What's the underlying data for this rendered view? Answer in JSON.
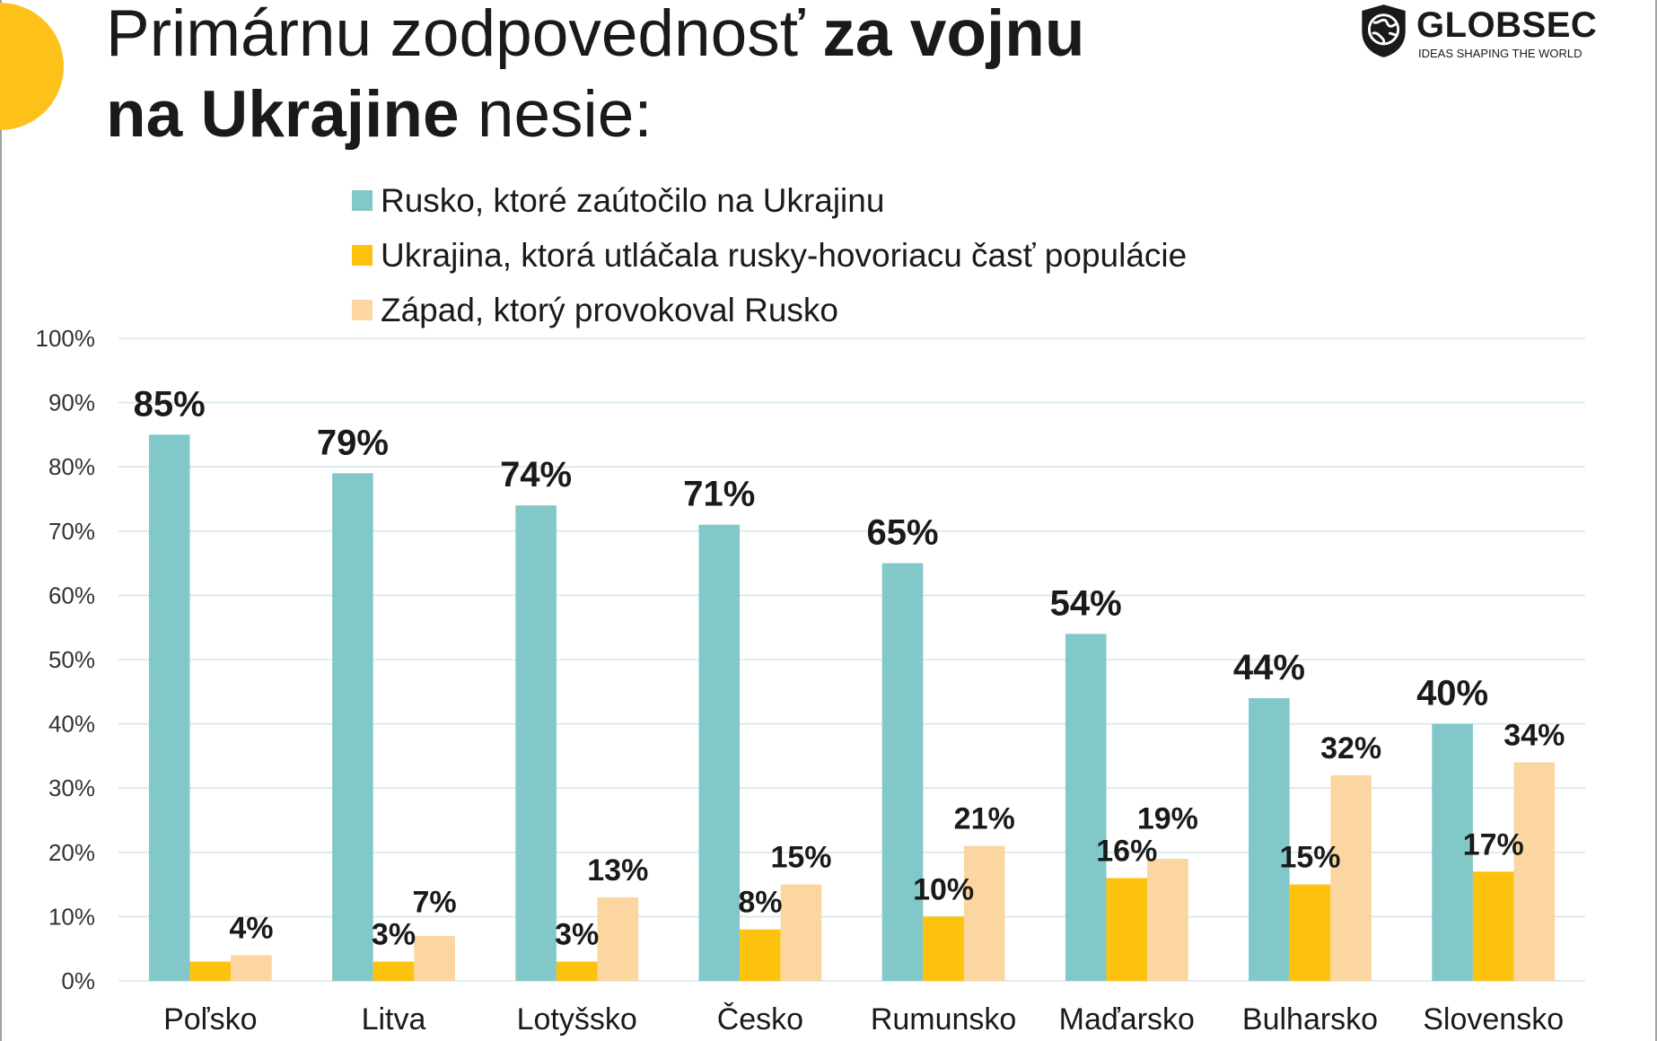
{
  "logo": {
    "name": "GLOBSEC",
    "tagline": "IDEAS SHAPING THE WORLD",
    "icon": "shield-globe-icon"
  },
  "colors": {
    "accent_circle": "#fdc11a",
    "text": "#1a1a1a",
    "grid": "#d5e8e8"
  },
  "chart_data": {
    "type": "bar",
    "title": {
      "line1": "Primárnu zodpovednosť",
      "line1_bold": "za vojnu",
      "line2_bold": "na Ukrajine",
      "line2": "nesie:"
    },
    "categories": [
      "Poľsko",
      "Litva",
      "Lotyšsko",
      "Česko",
      "Rumunsko",
      "Maďarsko",
      "Bulharsko",
      "Slovensko"
    ],
    "series": [
      {
        "name": "Rusko, ktoré zaútočilo na Ukrajinu",
        "color": "#82c8c8",
        "values": [
          85,
          79,
          74,
          71,
          65,
          54,
          44,
          40
        ],
        "labels": [
          "85%",
          "79%",
          "74%",
          "71%",
          "65%",
          "54%",
          "44%",
          "40%"
        ]
      },
      {
        "name": "Ukrajina, ktorá utláčala rusky-hovoriacu časť populácie",
        "color": "#fdc20e",
        "values": [
          3,
          3,
          3,
          8,
          10,
          16,
          15,
          17
        ],
        "labels": [
          "",
          "3%",
          "3%",
          "8%",
          "10%",
          "16%",
          "15%",
          "17%"
        ]
      },
      {
        "name": "Západ, ktorý provokoval Rusko",
        "color": "#fbd6a0",
        "values": [
          4,
          7,
          13,
          15,
          21,
          19,
          32,
          34
        ],
        "labels": [
          "4%",
          "7%",
          "13%",
          "15%",
          "21%",
          "19%",
          "32%",
          "34%"
        ]
      }
    ],
    "ylim": [
      0,
      100
    ],
    "y_tick_labels": [
      "0%",
      "10%",
      "20%",
      "30%",
      "40%",
      "50%",
      "60%",
      "70%",
      "80%",
      "90%",
      "100%"
    ],
    "xlabel": "",
    "ylabel": "",
    "grid": true,
    "legend": "top"
  }
}
